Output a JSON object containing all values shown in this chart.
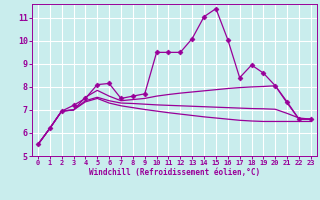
{
  "xlabel": "Windchill (Refroidissement éolien,°C)",
  "xlim": [
    -0.5,
    23.5
  ],
  "ylim": [
    5,
    11.6
  ],
  "yticks": [
    5,
    6,
    7,
    8,
    9,
    10,
    11
  ],
  "xticks": [
    0,
    1,
    2,
    3,
    4,
    5,
    6,
    7,
    8,
    9,
    10,
    11,
    12,
    13,
    14,
    15,
    16,
    17,
    18,
    19,
    20,
    21,
    22,
    23
  ],
  "background_color": "#c9eded",
  "line_color": "#990099",
  "grid_color": "#ffffff",
  "lines": [
    {
      "x": [
        0,
        1,
        2,
        3,
        4,
        5,
        6,
        7,
        8,
        9,
        10,
        11,
        12,
        13,
        14,
        15,
        16,
        17,
        18,
        19,
        20,
        21,
        22,
        23
      ],
      "y": [
        5.5,
        6.2,
        6.95,
        7.2,
        7.5,
        8.1,
        8.15,
        7.5,
        7.6,
        7.7,
        9.5,
        9.5,
        9.5,
        10.1,
        11.05,
        11.4,
        10.05,
        8.4,
        8.95,
        8.6,
        8.05,
        7.35,
        6.6,
        6.6
      ],
      "marker": "D",
      "ms": 2.5,
      "lw": 0.9
    },
    {
      "x": [
        0,
        1,
        2,
        3,
        4,
        5,
        6,
        7,
        8,
        9,
        10,
        11,
        12,
        13,
        14,
        15,
        16,
        17,
        18,
        19,
        20,
        21,
        22,
        23
      ],
      "y": [
        5.5,
        6.2,
        6.95,
        7.0,
        7.55,
        7.85,
        7.6,
        7.4,
        7.45,
        7.5,
        7.6,
        7.67,
        7.73,
        7.78,
        7.83,
        7.88,
        7.93,
        7.97,
        8.0,
        8.02,
        8.05,
        7.3,
        6.6,
        6.6
      ],
      "marker": null,
      "ms": 0,
      "lw": 0.9
    },
    {
      "x": [
        0,
        1,
        2,
        3,
        4,
        5,
        6,
        7,
        8,
        9,
        10,
        11,
        12,
        13,
        14,
        15,
        16,
        17,
        18,
        19,
        20,
        21,
        22,
        23
      ],
      "y": [
        5.5,
        6.2,
        6.95,
        7.0,
        7.4,
        7.55,
        7.4,
        7.3,
        7.28,
        7.25,
        7.22,
        7.2,
        7.18,
        7.16,
        7.14,
        7.12,
        7.1,
        7.08,
        7.06,
        7.05,
        7.03,
        6.85,
        6.65,
        6.6
      ],
      "marker": null,
      "ms": 0,
      "lw": 0.9
    },
    {
      "x": [
        0,
        1,
        2,
        3,
        4,
        5,
        6,
        7,
        8,
        9,
        10,
        11,
        12,
        13,
        14,
        15,
        16,
        17,
        18,
        19,
        20,
        21,
        22,
        23
      ],
      "y": [
        5.5,
        6.2,
        6.95,
        7.0,
        7.35,
        7.5,
        7.3,
        7.18,
        7.1,
        7.02,
        6.95,
        6.88,
        6.82,
        6.76,
        6.7,
        6.65,
        6.6,
        6.55,
        6.52,
        6.5,
        6.5,
        6.5,
        6.5,
        6.5
      ],
      "marker": null,
      "ms": 0,
      "lw": 0.9
    }
  ]
}
